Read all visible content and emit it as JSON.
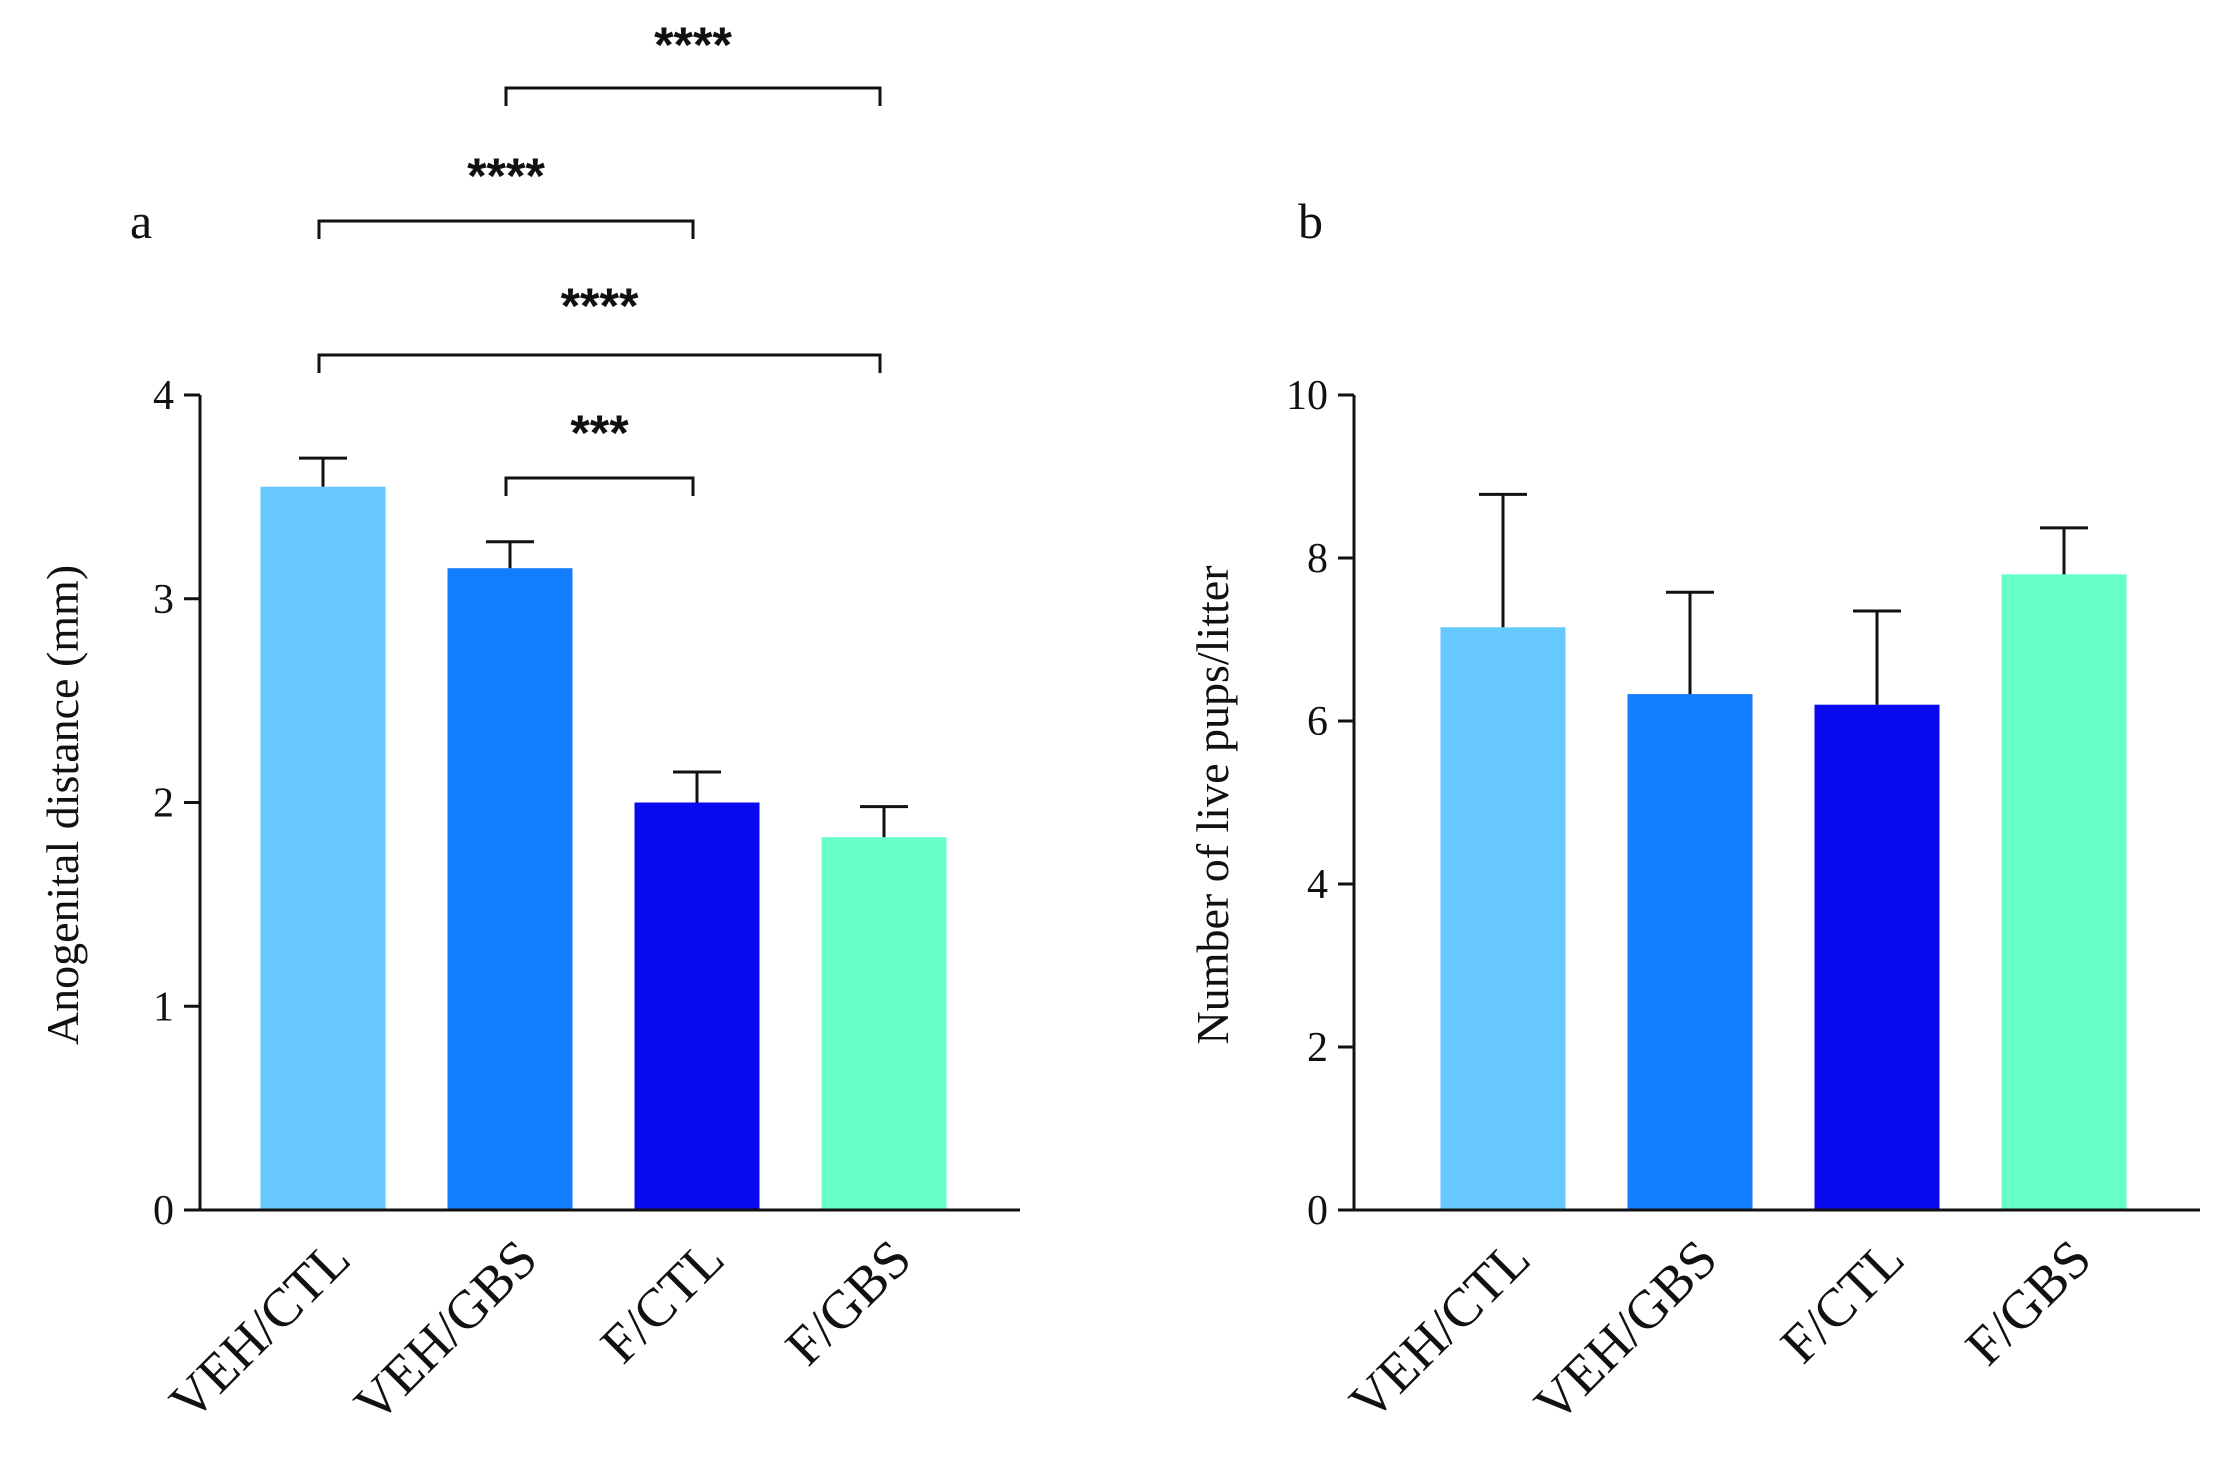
{
  "chart_data": [
    {
      "panel": "a",
      "type": "bar",
      "title": "",
      "xlabel": "",
      "ylabel": "Anogenital distance  (mm)",
      "ylim": [
        0,
        4
      ],
      "yticks": [
        "0",
        "1",
        "2",
        "3",
        "4"
      ],
      "categories": [
        "VEH/CTL",
        "VEH/GBS",
        "F/CTL",
        "F/GBS"
      ],
      "values": [
        3.55,
        3.15,
        2.0,
        1.83
      ],
      "errors": [
        0.14,
        0.13,
        0.15,
        0.15
      ],
      "colors": [
        "#66c8ff",
        "#137dff",
        "#0909f0",
        "#66ffc8"
      ],
      "significance": [
        {
          "from": 1,
          "to": 3,
          "label": "****"
        },
        {
          "from": 0,
          "to": 2,
          "label": "****"
        },
        {
          "from": 0,
          "to": 3,
          "label": "****"
        },
        {
          "from": 1,
          "to": 2,
          "label": "***"
        }
      ]
    },
    {
      "panel": "b",
      "type": "bar",
      "title": "",
      "xlabel": "",
      "ylabel": "Number of live pups/litter",
      "ylim": [
        0,
        10
      ],
      "yticks": [
        "0",
        "2",
        "4",
        "6",
        "8",
        "10"
      ],
      "categories": [
        "VEH/CTL",
        "VEH/GBS",
        "F/CTL",
        "F/GBS"
      ],
      "values": [
        7.15,
        6.33,
        6.2,
        7.8
      ],
      "errors": [
        1.63,
        1.25,
        1.15,
        0.57
      ],
      "colors": [
        "#66c8ff",
        "#137dff",
        "#0909f0",
        "#66ffc8"
      ],
      "significance": []
    }
  ]
}
